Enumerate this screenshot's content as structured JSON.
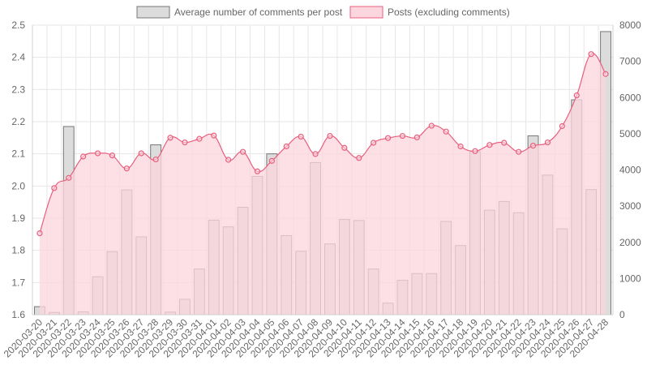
{
  "chart_data": {
    "type": "bar",
    "title": "",
    "legend_placement": "top",
    "grid": true,
    "categories": [
      "2020-03-20",
      "2020-03-21",
      "2020-03-22",
      "2020-03-23",
      "2020-03-24",
      "2020-03-25",
      "2020-03-26",
      "2020-03-27",
      "2020-03-28",
      "2020-03-29",
      "2020-03-30",
      "2020-03-31",
      "2020-04-01",
      "2020-04-02",
      "2020-04-03",
      "2020-04-04",
      "2020-04-05",
      "2020-04-06",
      "2020-04-07",
      "2020-04-08",
      "2020-04-09",
      "2020-04-10",
      "2020-04-11",
      "2020-04-12",
      "2020-04-13",
      "2020-04-14",
      "2020-04-15",
      "2020-04-16",
      "2020-04-17",
      "2020-04-18",
      "2020-04-19",
      "2020-04-20",
      "2020-04-21",
      "2020-04-22",
      "2020-04-23",
      "2020-04-24",
      "2020-04-25",
      "2020-04-26",
      "2020-04-27",
      "2020-04-28"
    ],
    "y_left": {
      "min": 1.6,
      "max": 2.5,
      "ticks": [
        "1.6",
        "1.7",
        "1.8",
        "1.9",
        "2.0",
        "2.1",
        "2.2",
        "2.3",
        "2.4",
        "2.5"
      ]
    },
    "y_right": {
      "min": 0,
      "max": 8000,
      "ticks": [
        "0",
        "1000",
        "2000",
        "3000",
        "4000",
        "5000",
        "6000",
        "7000",
        "8000"
      ]
    },
    "series": [
      {
        "name": "Average number of comments per post",
        "type": "bar",
        "axis": "left",
        "color": "#dcdcdc",
        "border": "#777777",
        "values": [
          1.625,
          1.607,
          2.185,
          1.609,
          1.718,
          1.796,
          1.988,
          1.842,
          2.128,
          1.608,
          1.648,
          1.742,
          1.894,
          1.873,
          1.934,
          2.03,
          2.1,
          1.846,
          1.797,
          2.073,
          1.82,
          1.896,
          1.893,
          1.742,
          1.636,
          1.707,
          1.728,
          1.728,
          1.89,
          1.815,
          2.107,
          1.925,
          1.952,
          1.917,
          2.156,
          2.034,
          1.867,
          2.268,
          1.989,
          2.48
        ]
      },
      {
        "name": "Posts (excluding comments)",
        "type": "area",
        "axis": "right",
        "color": "#e8607e",
        "fill": "#fcd6de",
        "values": [
          2250,
          3500,
          3780,
          4370,
          4460,
          4400,
          4040,
          4460,
          4290,
          4890,
          4760,
          4860,
          4950,
          4280,
          4500,
          3960,
          4250,
          4650,
          4920,
          4440,
          4940,
          4610,
          4330,
          4750,
          4880,
          4940,
          4900,
          5220,
          5060,
          4650,
          4520,
          4690,
          4750,
          4500,
          4670,
          4760,
          5210,
          6060,
          7200,
          6650
        ]
      }
    ]
  }
}
